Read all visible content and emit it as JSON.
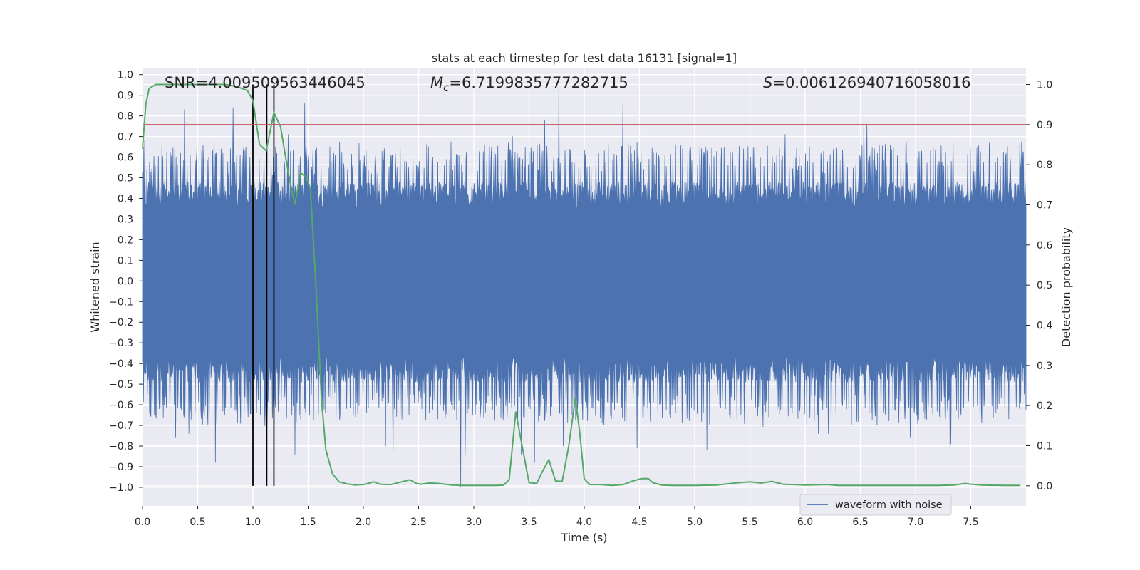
{
  "chart_data": {
    "type": "line",
    "title": "stats at each timestep for test data 16131 [signal=1]",
    "xlabel": "Time (s)",
    "ylabel_left": "Whitened strain",
    "ylabel_right": "Detection probability",
    "xlim": [
      0,
      8
    ],
    "ylim_left": [
      -1.09,
      1.03
    ],
    "ylim_right": [
      -0.05,
      1.04
    ],
    "x_ticks": [
      "0.0",
      "0.5",
      "1.0",
      "1.5",
      "2.0",
      "2.5",
      "3.0",
      "3.5",
      "4.0",
      "4.5",
      "5.0",
      "5.5",
      "6.0",
      "6.5",
      "7.0",
      "7.5"
    ],
    "x_tick_values": [
      0,
      0.5,
      1,
      1.5,
      2,
      2.5,
      3,
      3.5,
      4,
      4.5,
      5,
      5.5,
      6,
      6.5,
      7,
      7.5
    ],
    "y_left_ticks": [
      "1.0",
      "0.9",
      "0.8",
      "0.7",
      "0.6",
      "0.5",
      "0.4",
      "0.3",
      "0.2",
      "0.1",
      "0.0",
      "−0.1",
      "−0.2",
      "−0.3",
      "−0.4",
      "−0.5",
      "−0.6",
      "−0.7",
      "−0.8",
      "−0.9",
      "−1.0"
    ],
    "y_left_tick_values": [
      1.0,
      0.9,
      0.8,
      0.7,
      0.6,
      0.5,
      0.4,
      0.3,
      0.2,
      0.1,
      0.0,
      -0.1,
      -0.2,
      -0.3,
      -0.4,
      -0.5,
      -0.6,
      -0.7,
      -0.8,
      -0.9,
      -1.0
    ],
    "y_right_ticks": [
      "1.0",
      "0.9",
      "0.8",
      "0.7",
      "0.6",
      "0.5",
      "0.4",
      "0.3",
      "0.2",
      "0.1",
      "0.0"
    ],
    "y_right_tick_values": [
      1.0,
      0.9,
      0.8,
      0.7,
      0.6,
      0.5,
      0.4,
      0.3,
      0.2,
      0.1,
      0.0
    ],
    "grid": true,
    "annotations": {
      "snr": "SNR=4.009509563446045",
      "mc_prefix": "M",
      "mc_sub": "c",
      "mc_value": "=6.7199835777282715",
      "s_prefix": "S",
      "s_value": "=0.006126940716058016"
    },
    "legend": {
      "placement": "lower-right",
      "entries": [
        "waveform with noise"
      ]
    },
    "threshold": {
      "value": 0.9,
      "axis": "right",
      "color": "#c44e52"
    },
    "vlines": [
      1.0,
      1.125,
      1.19
    ],
    "waveform": {
      "name": "waveform with noise",
      "color": "#4c72b0",
      "envelope_samples": 2000,
      "positive_peaks": [
        {
          "x": 0.02,
          "y": 0.68
        },
        {
          "x": 0.38,
          "y": 0.83
        },
        {
          "x": 0.65,
          "y": 0.72
        },
        {
          "x": 0.82,
          "y": 0.84
        },
        {
          "x": 1.32,
          "y": 0.71
        },
        {
          "x": 1.47,
          "y": 0.86
        },
        {
          "x": 2.25,
          "y": 0.61
        },
        {
          "x": 3.35,
          "y": 0.7
        },
        {
          "x": 3.64,
          "y": 0.78
        },
        {
          "x": 3.77,
          "y": 0.93
        },
        {
          "x": 4.35,
          "y": 0.86
        },
        {
          "x": 5.82,
          "y": 0.71
        },
        {
          "x": 6.53,
          "y": 0.77
        },
        {
          "x": 6.56,
          "y": 0.76
        },
        {
          "x": 6.35,
          "y": 0.66
        },
        {
          "x": 7.96,
          "y": 0.67
        }
      ],
      "negative_peaks": [
        {
          "x": 0.3,
          "y": -0.76
        },
        {
          "x": 0.42,
          "y": -0.74
        },
        {
          "x": 0.66,
          "y": -0.88
        },
        {
          "x": 1.38,
          "y": -0.84
        },
        {
          "x": 2.2,
          "y": -0.8
        },
        {
          "x": 2.27,
          "y": -0.83
        },
        {
          "x": 2.88,
          "y": -1.0
        },
        {
          "x": 2.92,
          "y": -0.84
        },
        {
          "x": 3.43,
          "y": -0.84
        },
        {
          "x": 3.55,
          "y": -0.88
        },
        {
          "x": 3.81,
          "y": -0.8
        },
        {
          "x": 4.48,
          "y": -0.81
        },
        {
          "x": 5.11,
          "y": -0.82
        },
        {
          "x": 6.12,
          "y": -0.74
        },
        {
          "x": 6.21,
          "y": -0.74
        },
        {
          "x": 6.95,
          "y": -0.76
        },
        {
          "x": 7.31,
          "y": -0.81
        },
        {
          "x": 7.32,
          "y": -0.79
        }
      ]
    },
    "probability": {
      "color": "#55a868",
      "x": [
        0.0,
        0.03,
        0.06,
        0.12,
        0.25,
        0.4,
        0.6,
        0.75,
        0.85,
        0.95,
        1.0,
        1.06,
        1.12,
        1.19,
        1.25,
        1.32,
        1.38,
        1.43,
        1.48,
        1.52,
        1.57,
        1.62,
        1.66,
        1.72,
        1.78,
        1.85,
        1.92,
        2.0,
        2.1,
        2.15,
        2.25,
        2.32,
        2.42,
        2.48,
        2.52,
        2.6,
        2.68,
        2.8,
        2.9,
        3.0,
        3.1,
        3.2,
        3.27,
        3.32,
        3.38,
        3.43,
        3.5,
        3.57,
        3.62,
        3.68,
        3.74,
        3.8,
        3.86,
        3.92,
        3.96,
        4.0,
        4.05,
        4.15,
        4.25,
        4.35,
        4.45,
        4.52,
        4.58,
        4.62,
        4.7,
        4.8,
        5.0,
        5.2,
        5.4,
        5.5,
        5.6,
        5.7,
        5.8,
        6.0,
        6.2,
        6.3,
        6.5,
        6.8,
        7.0,
        7.2,
        7.35,
        7.45,
        7.5,
        7.6,
        7.8,
        7.95
      ],
      "y": [
        0.84,
        0.95,
        0.99,
        1.0,
        1.0,
        1.0,
        1.0,
        1.0,
        0.995,
        0.985,
        0.96,
        0.85,
        0.835,
        0.93,
        0.895,
        0.78,
        0.7,
        0.78,
        0.77,
        0.74,
        0.5,
        0.22,
        0.09,
        0.03,
        0.01,
        0.005,
        0.002,
        0.003,
        0.01,
        0.004,
        0.003,
        0.008,
        0.015,
        0.006,
        0.004,
        0.007,
        0.006,
        0.002,
        0.001,
        0.001,
        0.001,
        0.001,
        0.002,
        0.015,
        0.185,
        0.11,
        0.008,
        0.006,
        0.035,
        0.065,
        0.012,
        0.011,
        0.1,
        0.22,
        0.13,
        0.017,
        0.003,
        0.003,
        0.001,
        0.003,
        0.013,
        0.018,
        0.018,
        0.008,
        0.002,
        0.001,
        0.001,
        0.002,
        0.008,
        0.01,
        0.007,
        0.011,
        0.004,
        0.002,
        0.003,
        0.001,
        0.001,
        0.001,
        0.001,
        0.001,
        0.002,
        0.006,
        0.004,
        0.002,
        0.001,
        0.001
      ]
    }
  }
}
